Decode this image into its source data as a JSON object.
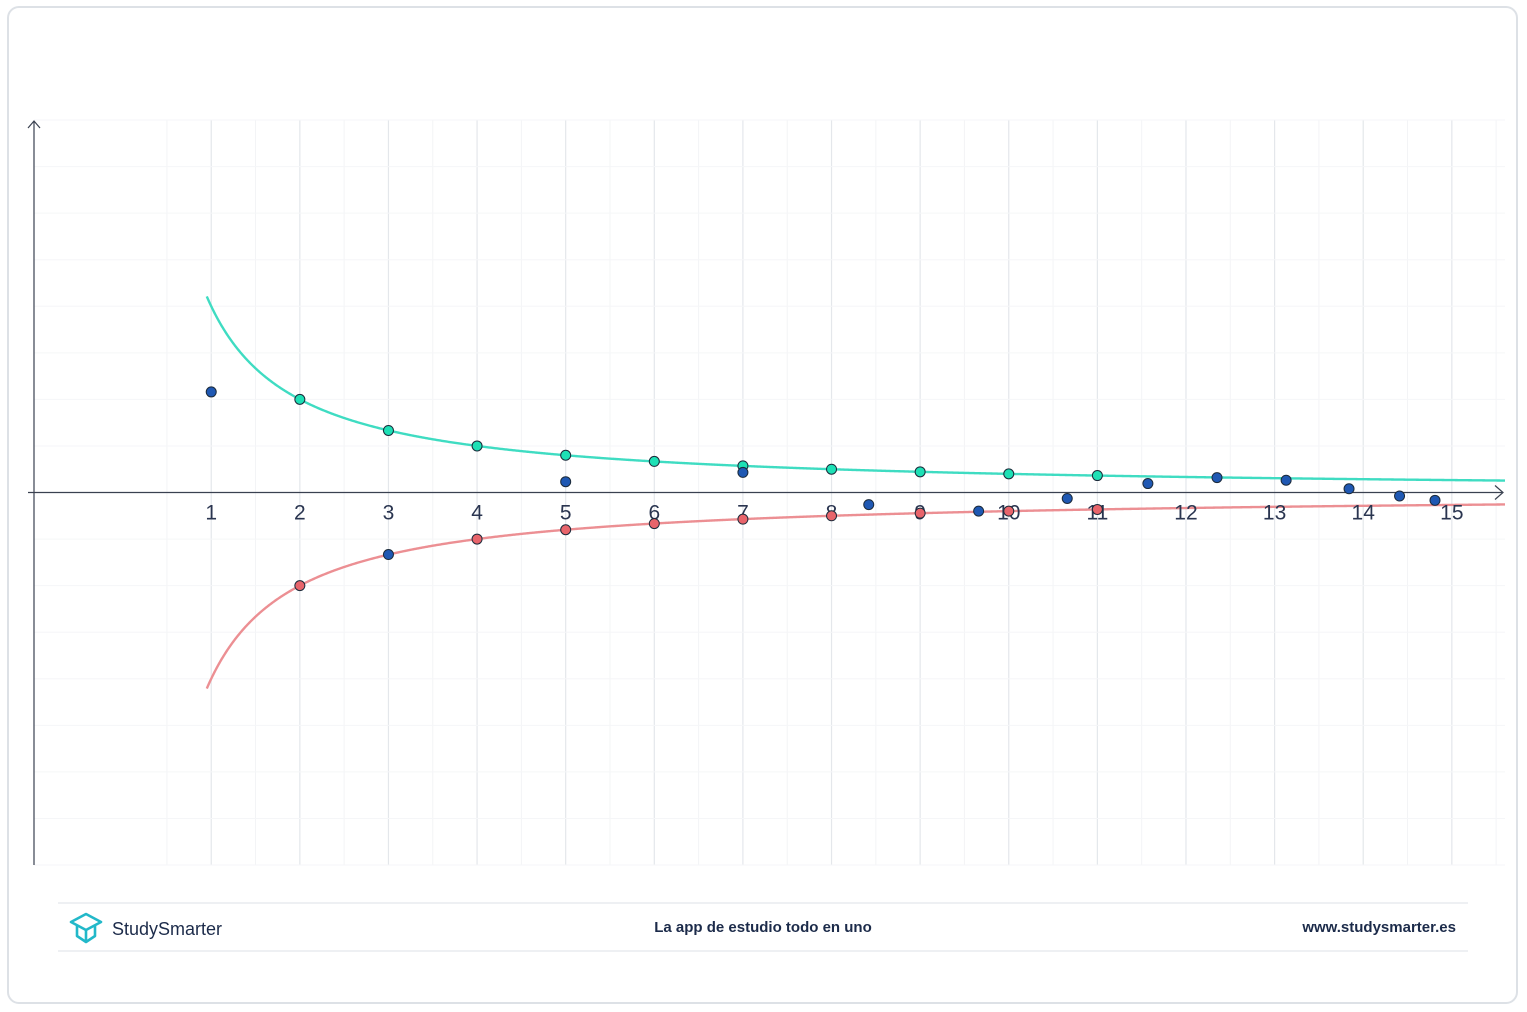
{
  "chart_data": {
    "type": "scatter",
    "title": "",
    "xlabel": "",
    "ylabel": "",
    "xlim": [
      -1.0,
      15.6
    ],
    "ylim": [
      -2.0,
      2.0
    ],
    "x_ticks": [
      1,
      2,
      3,
      4,
      5,
      6,
      7,
      8,
      9,
      10,
      11,
      12,
      13,
      14,
      15
    ],
    "x_tick_labels": [
      "1",
      "2",
      "3",
      "4",
      "5",
      "6",
      "7",
      "8",
      "9",
      "10",
      "11",
      "12",
      "13",
      "14",
      "15"
    ],
    "grid": true,
    "curves": [
      {
        "formula": "1/x",
        "color": "#3fdcc2"
      },
      {
        "formula": "-1/x",
        "color": "#ec8f93"
      }
    ],
    "series": [
      {
        "color": "#1de0b5",
        "points": [
          [
            2,
            0.5
          ],
          [
            3,
            0.333
          ],
          [
            4,
            0.25
          ],
          [
            5,
            0.2
          ],
          [
            6,
            0.167
          ],
          [
            7,
            0.143
          ],
          [
            8,
            0.125
          ],
          [
            9,
            0.111
          ],
          [
            10,
            0.1
          ],
          [
            11,
            0.091
          ]
        ]
      },
      {
        "color": "#e8646b",
        "points": [
          [
            2,
            -0.5
          ],
          [
            4,
            -0.25
          ],
          [
            5,
            -0.2
          ],
          [
            6,
            -0.167
          ],
          [
            7,
            -0.143
          ],
          [
            8,
            -0.125
          ],
          [
            9,
            -0.111
          ],
          [
            10,
            -0.1
          ],
          [
            11,
            -0.091
          ]
        ]
      },
      {
        "color": "#1f58b3",
        "points": [
          [
            1,
            0.54
          ],
          [
            5,
            0.058
          ],
          [
            7,
            0.108
          ],
          [
            8.42,
            -0.065
          ],
          [
            9.66,
            -0.1
          ],
          [
            10.66,
            -0.032
          ],
          [
            11.57,
            0.048
          ],
          [
            12.35,
            0.08
          ],
          [
            13.13,
            0.066
          ],
          [
            13.84,
            0.02
          ],
          [
            14.41,
            -0.019
          ],
          [
            14.81,
            -0.042
          ],
          [
            3,
            -0.333
          ]
        ]
      }
    ]
  },
  "footer": {
    "brand": "StudySmarter",
    "tagline": "La app de estudio todo en uno",
    "website": "www.studysmarter.es"
  }
}
